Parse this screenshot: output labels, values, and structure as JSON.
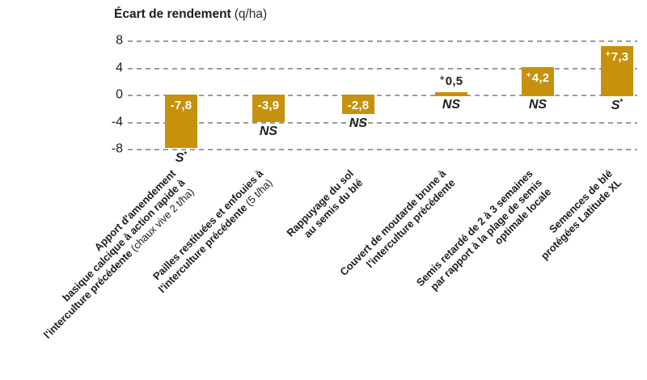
{
  "header": {
    "title_main": "Écart de rendement",
    "title_unit": "(q/ha)"
  },
  "chart_data": {
    "type": "bar",
    "title": "Écart de rendement (q/ha)",
    "unit": "q/ha",
    "ylim": [
      -8,
      8
    ],
    "yticks": [
      8,
      4,
      0,
      -4,
      -8
    ],
    "grid": "horizontal-dashed",
    "legend": "none",
    "bar_color": "#C6910D",
    "gridline_color": "#9C9C9C",
    "text_color": "#1d1d1b",
    "categories": [
      "Apport d'amendement basique calcique à action rapide à l'interculture précédente (chaux vive 2 t/ha)",
      "Pailles restituées et enfouies à l'interculture précédente (5 t/ha)",
      "Rappuyage du sol au semis du blé",
      "Couvert de moutarde brune à l'interculture précédente",
      "Semis retardé de 2 à 3 semaines par rapport à la plage de semis optimale locale",
      "Semences de blé protégées Latitude XL"
    ],
    "values": [
      -7.8,
      -3.9,
      -2.8,
      0.5,
      4.2,
      7.3
    ],
    "bars": [
      {
        "value": -7.8,
        "value_label": "-7,8",
        "significance": "S*",
        "label_lines": [
          [
            {
              "t": "Apport d'amendement",
              "b": true
            }
          ],
          [
            {
              "t": "basique calcique à action rapide à",
              "b": true
            }
          ],
          [
            {
              "t": "l'interculture précédente ",
              "b": true
            },
            {
              "t": "(chaux vive 2 t/ha)",
              "b": false
            }
          ]
        ]
      },
      {
        "value": -3.9,
        "value_label": "-3,9",
        "significance": "NS",
        "label_lines": [
          [
            {
              "t": "Pailles restituées et enfouies à",
              "b": true
            }
          ],
          [
            {
              "t": "l'interculture précédente ",
              "b": true
            },
            {
              "t": "(5 t/ha)",
              "b": false
            }
          ]
        ]
      },
      {
        "value": -2.8,
        "value_label": "-2,8",
        "significance": "NS",
        "label_lines": [
          [
            {
              "t": "Rappuyage du sol",
              "b": true
            }
          ],
          [
            {
              "t": "au semis du blé",
              "b": true
            }
          ]
        ]
      },
      {
        "value": 0.5,
        "value_label": "+0,5",
        "significance": "NS",
        "label_lines": [
          [
            {
              "t": "Couvert de moutarde brune à",
              "b": true
            }
          ],
          [
            {
              "t": "l'interculture précédente",
              "b": true
            }
          ]
        ]
      },
      {
        "value": 4.2,
        "value_label": "+4,2",
        "significance": "NS",
        "label_lines": [
          [
            {
              "t": "Semis retardé de 2 à 3 semaines",
              "b": true
            }
          ],
          [
            {
              "t": "par rapport à la plage de semis",
              "b": true
            }
          ],
          [
            {
              "t": "optimale locale",
              "b": true
            }
          ]
        ]
      },
      {
        "value": 7.3,
        "value_label": "+7,3",
        "significance": "S*",
        "label_lines": [
          [
            {
              "t": "Semences de blé",
              "b": true
            }
          ],
          [
            {
              "t": "protégées Latitude XL",
              "b": true
            }
          ]
        ]
      }
    ]
  }
}
